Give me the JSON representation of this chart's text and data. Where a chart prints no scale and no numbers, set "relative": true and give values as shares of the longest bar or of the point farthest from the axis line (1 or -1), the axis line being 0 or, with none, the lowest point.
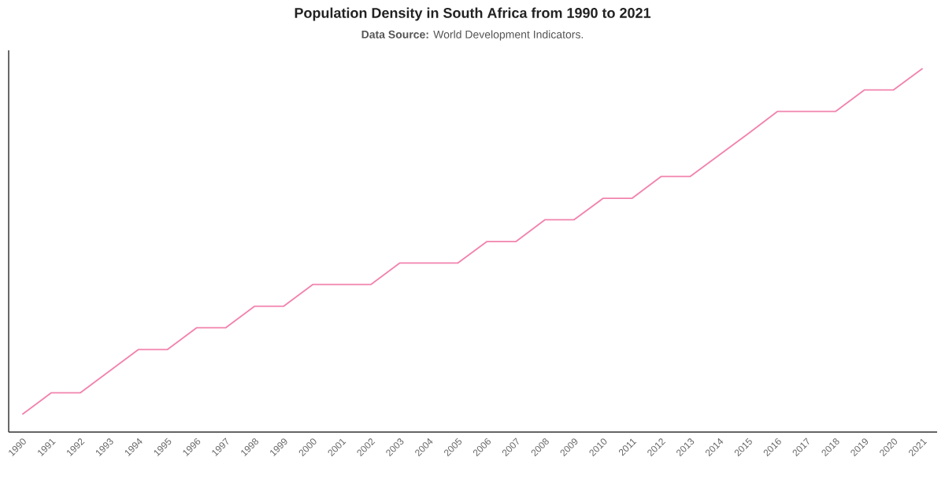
{
  "chart_data": {
    "type": "line",
    "title": "Population Density in South Africa from 1990 to 2021",
    "subtitle": "**Data Source:** World Development Indicators.",
    "categories": [
      "1990",
      "1991",
      "1992",
      "1993",
      "1994",
      "1995",
      "1996",
      "1997",
      "1998",
      "1999",
      "2000",
      "2001",
      "2002",
      "2003",
      "2004",
      "2005",
      "2006",
      "2007",
      "2008",
      "2009",
      "2010",
      "2011",
      "2012",
      "2013",
      "2014",
      "2015",
      "2016",
      "2017",
      "2018",
      "2019",
      "2020",
      "2021"
    ],
    "values": [
      0.049,
      0.108,
      0.108,
      0.168,
      0.227,
      0.227,
      0.287,
      0.287,
      0.346,
      0.346,
      0.406,
      0.406,
      0.406,
      0.465,
      0.465,
      0.465,
      0.524,
      0.524,
      0.584,
      0.584,
      0.643,
      0.643,
      0.703,
      0.703,
      0.762,
      0.821,
      0.882,
      0.882,
      0.882,
      0.941,
      0.941,
      1
    ],
    "color": "#f283ae",
    "relative": true
  }
}
